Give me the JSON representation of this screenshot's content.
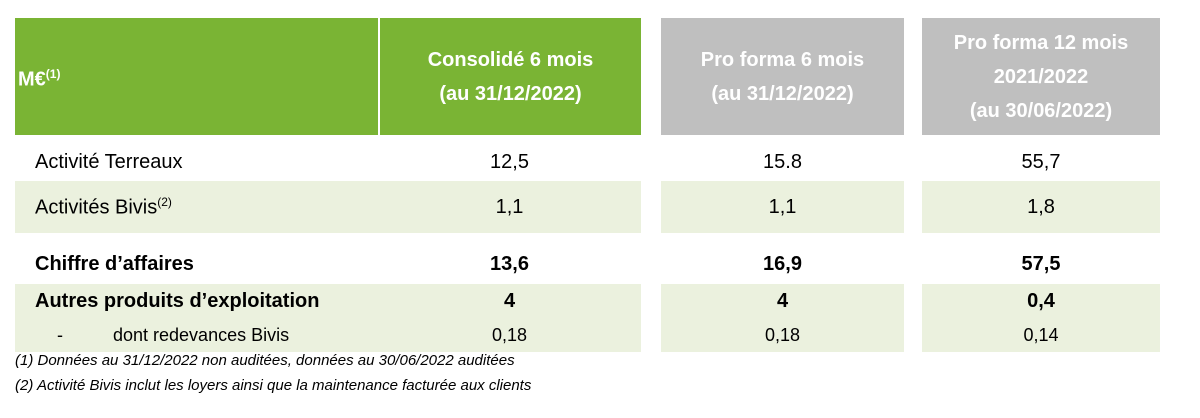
{
  "header": {
    "label": "M€",
    "label_note": "(1)",
    "columns": [
      [
        "Consolidé 6 mois",
        "(au 31/12/2022)"
      ],
      [
        "Pro forma 6 mois",
        "(au 31/12/2022)"
      ],
      [
        "Pro forma 12 mois",
        "2021/2022",
        "(au 30/06/2022)"
      ]
    ]
  },
  "rows": [
    {
      "label": "Activité Terreaux",
      "values": [
        "12,5",
        "15.8",
        "55,7"
      ]
    },
    {
      "label": "Activités Bivis",
      "label_note": "(2)",
      "values": [
        "1,1",
        "1,1",
        "1,8"
      ]
    },
    {
      "label": "Chiffre d’affaires",
      "values": [
        "13,6",
        "16,9",
        "57,5"
      ]
    },
    {
      "label": "Autres produits d’exploitation",
      "values": [
        "4",
        "4",
        "0,4"
      ]
    },
    {
      "prefix": "-",
      "label": "dont redevances Bivis",
      "values": [
        "0,18",
        "0,18",
        "0,14"
      ]
    }
  ],
  "footnotes": [
    "(1) Données au 31/12/2022 non auditées, données au 30/06/2022 auditées",
    "(2) Activité Bivis inclut les loyers ainsi que la maintenance facturée aux clients"
  ]
}
